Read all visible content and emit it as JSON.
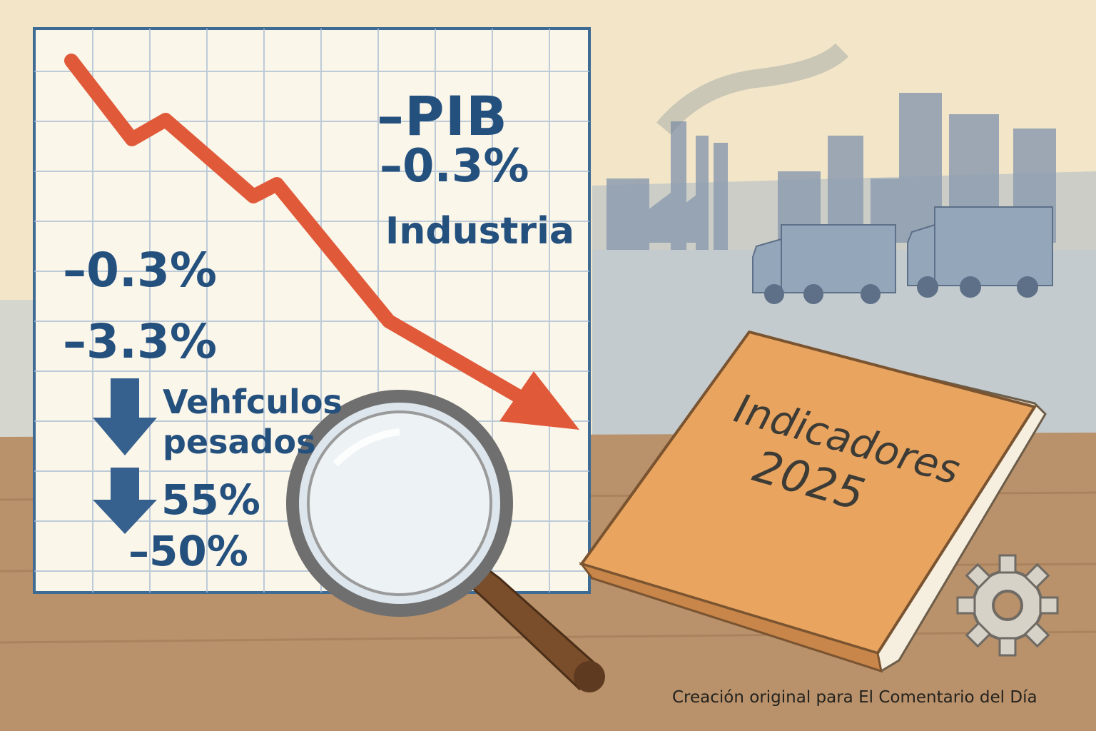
{
  "chart_panel": {
    "pib_label": "–PIB",
    "pib_value": "–0.3%",
    "industria_label": "Industria",
    "values": [
      "–0.3%",
      "–3.3%",
      "55%",
      "–50%"
    ],
    "vehiculos_line1": "Vehfculos",
    "vehiculos_line2": "pesados"
  },
  "book": {
    "title_line1": "Indicadores",
    "title_line2": "2025"
  },
  "credit": "Creación original para El Comentario del Día",
  "icons": [
    "trend-down-arrow-icon",
    "down-arrow-icon",
    "magnifying-glass-icon",
    "gear-icon",
    "truck-icon",
    "factory-icon"
  ],
  "colors": {
    "paper": "#f3e6c8",
    "ink_blue": "#24507e",
    "trend_red": "#e05a3a",
    "book_orange": "#e9a560",
    "desk_wood": "#b9916a"
  }
}
